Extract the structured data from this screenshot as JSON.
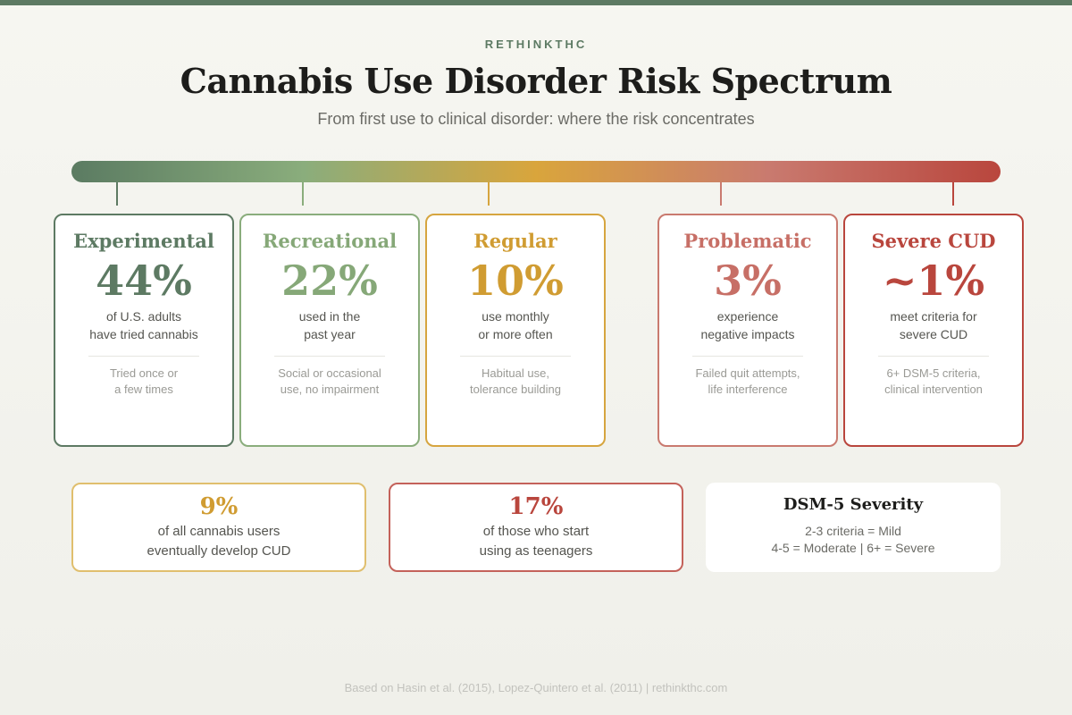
{
  "header": {
    "brand": "RETHINKTHC",
    "title": "Cannabis Use Disorder Risk Spectrum",
    "subtitle": "From first use to clinical disorder: where the risk concentrates"
  },
  "colors": {
    "green": "#5d7a63",
    "light_green": "#8aad7c",
    "amber": "#d6a53f",
    "rose": "#c97a6f",
    "red": "#b9463d"
  },
  "stages": [
    {
      "title": "Experimental",
      "pct": "44%",
      "desc1": "of U.S. adults",
      "desc2": "have tried cannabis",
      "note1": "Tried once or",
      "note2": "a few times"
    },
    {
      "title": "Recreational",
      "pct": "22%",
      "desc1": "used in the",
      "desc2": "past year",
      "note1": "Social or occasional",
      "note2": "use, no impairment"
    },
    {
      "title": "Regular",
      "pct": "10%",
      "desc1": "use monthly",
      "desc2": "or more often",
      "note1": "Habitual use,",
      "note2": "tolerance building"
    },
    {
      "title": "Problematic",
      "pct": "3%",
      "desc1": "experience",
      "desc2": "negative impacts",
      "note1": "Failed quit attempts,",
      "note2": "life interference"
    },
    {
      "title": "Severe CUD",
      "pct": "~1%",
      "desc1": "meet criteria for",
      "desc2": "severe CUD",
      "note1": "6+ DSM-5 criteria,",
      "note2": "clinical intervention"
    }
  ],
  "stats": [
    {
      "pct": "9%",
      "line1": "of all cannabis users",
      "line2": "eventually develop CUD"
    },
    {
      "pct": "17%",
      "line1": "of those who start",
      "line2": "using as teenagers"
    }
  ],
  "dsm": {
    "title": "DSM-5 Severity",
    "line1": "2-3 criteria = Mild",
    "line2": "4-5 = Moderate | 6+ = Severe"
  },
  "footer": "Based on Hasin et al. (2015), Lopez-Quintero et al. (2011) | rethinkthc.com"
}
